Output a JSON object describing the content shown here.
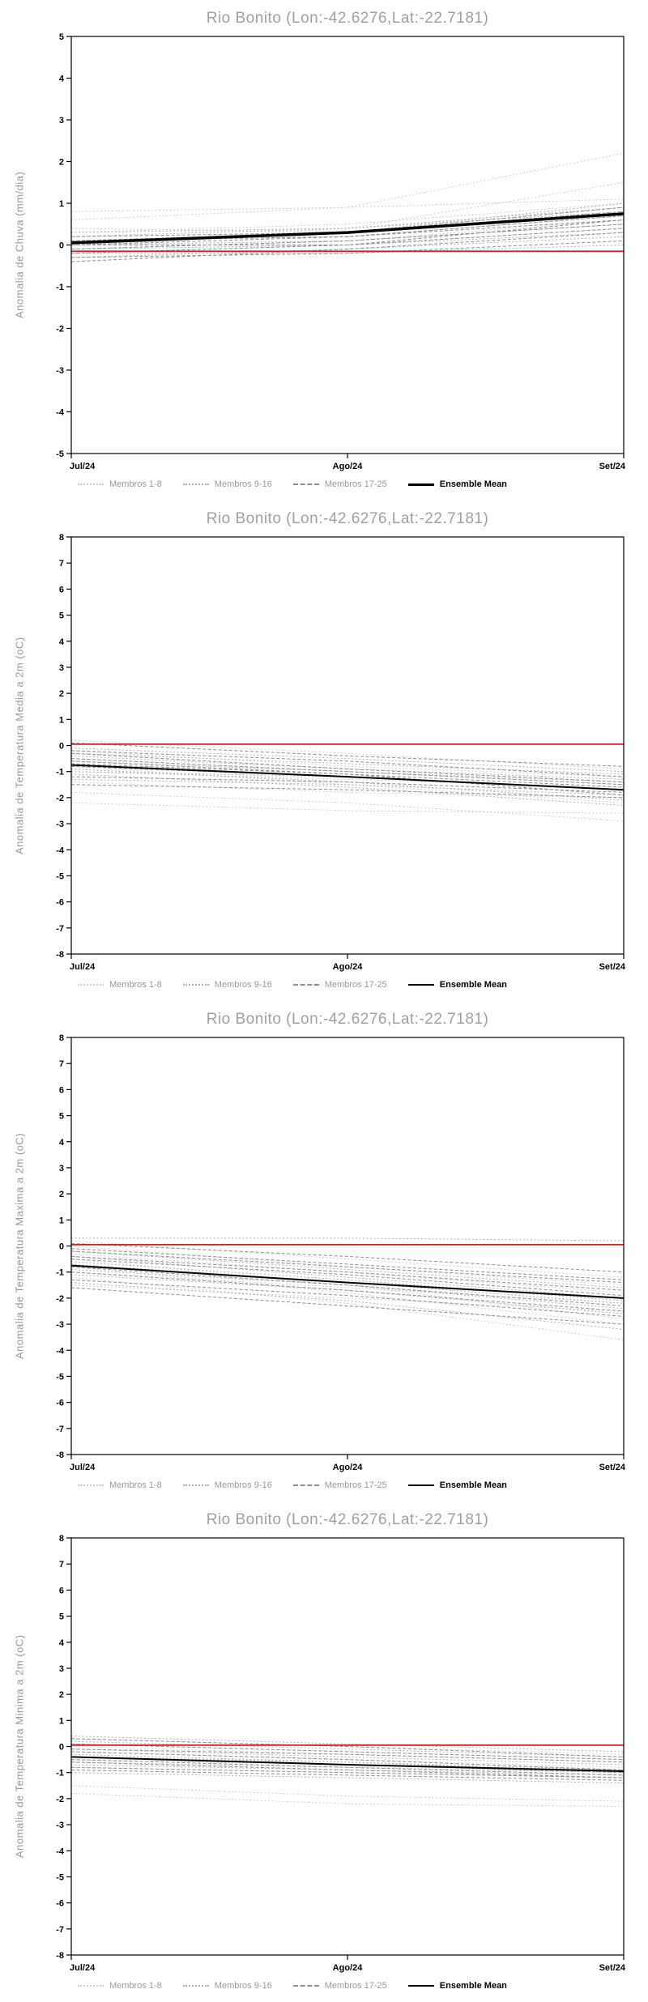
{
  "page": {
    "background": "#ffffff"
  },
  "chart_data": [
    {
      "type": "line",
      "title": "Rio Bonito (Lon:-42.6276,Lat:-22.7181)",
      "ylabel": "Anomalia de Chuva (mm/dia)",
      "x_labels": [
        "Jul/24",
        "Ago/24",
        "Set/24"
      ],
      "ylim": [
        -5,
        5
      ],
      "ytick_step": 1,
      "grid": false,
      "legend_position": "bottom",
      "red_line": -0.15,
      "red_color": "#cc2222",
      "mean": {
        "label": "Ensemble Mean",
        "color": "#000000",
        "width": 3.5,
        "values": [
          0.05,
          0.3,
          0.75
        ]
      },
      "groups": [
        {
          "label": "Membros 1-8",
          "color": "#cfcfcf",
          "dash": "2,2.5",
          "members": [
            [
              0.8,
              0.9,
              1.1
            ],
            [
              0.6,
              0.9,
              2.2
            ],
            [
              0.3,
              0.5,
              1.0
            ],
            [
              0.1,
              0.3,
              0.9
            ],
            [
              -0.1,
              0.1,
              0.6
            ],
            [
              -0.2,
              0.0,
              0.4
            ],
            [
              0.4,
              0.3,
              0.8
            ],
            [
              0.0,
              0.4,
              1.5
            ]
          ]
        },
        {
          "label": "Membros 9-16",
          "color": "#b0b0b0",
          "dash": "2,2.5",
          "members": [
            [
              0.2,
              0.4,
              0.9
            ],
            [
              0.0,
              0.1,
              0.5
            ],
            [
              -0.1,
              0.0,
              0.3
            ],
            [
              -0.3,
              -0.1,
              0.2
            ],
            [
              0.1,
              0.2,
              0.7
            ],
            [
              -0.2,
              -0.2,
              0.0
            ],
            [
              0.3,
              0.4,
              0.8
            ],
            [
              0.0,
              0.3,
              1.0
            ]
          ]
        },
        {
          "label": "Membros 17-25",
          "color": "#8f8f8f",
          "dash": "4,2.5",
          "members": [
            [
              0.1,
              0.3,
              0.8
            ],
            [
              -0.1,
              0.1,
              0.5
            ],
            [
              -0.3,
              -0.2,
              0.1
            ],
            [
              0.0,
              0.0,
              0.4
            ],
            [
              0.2,
              0.3,
              0.9
            ],
            [
              -0.2,
              0.0,
              0.6
            ],
            [
              0.0,
              0.2,
              0.7
            ],
            [
              -0.4,
              -0.1,
              0.3
            ],
            [
              0.1,
              0.2,
              0.6
            ]
          ]
        }
      ]
    },
    {
      "type": "line",
      "title": "Rio Bonito (Lon:-42.6276,Lat:-22.7181)",
      "ylabel": "Anomalia de Temperatura Media a 2m (oC)",
      "x_labels": [
        "Jul/24",
        "Ago/24",
        "Set/24"
      ],
      "ylim": [
        -8,
        8
      ],
      "ytick_step": 1,
      "grid": false,
      "legend_position": "bottom",
      "red_line": 0.05,
      "red_color": "#cc2222",
      "mean": {
        "label": "Ensemble Mean",
        "color": "#000000",
        "width": 2,
        "values": [
          -0.75,
          -1.2,
          -1.7
        ]
      },
      "groups": [
        {
          "label": "Membros 1-8",
          "color": "#cfcfcf",
          "dash": "2,2.5",
          "members": [
            [
              -2.2,
              -2.5,
              -2.6
            ],
            [
              -1.8,
              -2.2,
              -2.9
            ],
            [
              -0.5,
              -1.0,
              -1.5
            ],
            [
              -0.2,
              -0.8,
              -1.2
            ],
            [
              0.2,
              -0.3,
              -0.9
            ],
            [
              -1.0,
              -1.3,
              -1.6
            ],
            [
              -0.8,
              -1.5,
              -2.2
            ],
            [
              -1.4,
              -1.8,
              -2.0
            ]
          ]
        },
        {
          "label": "Membros 9-16",
          "color": "#b0b0b0",
          "dash": "2,2.5",
          "members": [
            [
              -0.3,
              -0.7,
              -1.1
            ],
            [
              -0.6,
              -1.0,
              -1.4
            ],
            [
              -1.0,
              -1.2,
              -1.7
            ],
            [
              -1.3,
              -1.5,
              -1.9
            ],
            [
              -0.1,
              -0.5,
              -1.0
            ],
            [
              -0.9,
              -1.4,
              -2.1
            ],
            [
              -0.4,
              -0.9,
              -1.3
            ],
            [
              -1.1,
              -1.6,
              -2.3
            ]
          ]
        },
        {
          "label": "Membros 17-25",
          "color": "#8f8f8f",
          "dash": "4,2.5",
          "members": [
            [
              -0.2,
              -0.6,
              -1.2
            ],
            [
              -0.7,
              -1.1,
              -1.6
            ],
            [
              -1.2,
              -1.4,
              -1.8
            ],
            [
              -0.5,
              -1.0,
              -1.5
            ],
            [
              0.1,
              -0.4,
              -0.8
            ],
            [
              -0.8,
              -1.2,
              -1.7
            ],
            [
              -1.5,
              -1.7,
              -2.0
            ],
            [
              -0.3,
              -0.9,
              -1.4
            ],
            [
              -0.6,
              -1.1,
              -1.9
            ]
          ]
        }
      ]
    },
    {
      "type": "line",
      "title": "Rio Bonito (Lon:-42.6276,Lat:-22.7181)",
      "ylabel": "Anomalia de Temperatura Maxima a 2m (oC)",
      "x_labels": [
        "Jul/24",
        "Ago/24",
        "Set/24"
      ],
      "ylim": [
        -8,
        8
      ],
      "ytick_step": 1,
      "grid": false,
      "legend_position": "bottom",
      "red_line": 0.05,
      "red_color": "#cc2222",
      "mean": {
        "label": "Ensemble Mean",
        "color": "#000000",
        "width": 2,
        "values": [
          -0.75,
          -1.4,
          -2.0
        ]
      },
      "groups": [
        {
          "label": "Membros 1-8",
          "color": "#cfcfcf",
          "dash": "2,2.5",
          "members": [
            [
              -0.5,
              -1.5,
              -2.8
            ],
            [
              -1.2,
              -2.2,
              -3.6
            ],
            [
              0.2,
              -0.5,
              -1.2
            ],
            [
              -0.8,
              -1.8,
              -3.0
            ],
            [
              -0.3,
              -1.0,
              -1.8
            ],
            [
              -1.5,
              -2.0,
              -2.5
            ],
            [
              0.0,
              -0.8,
              -1.5
            ],
            [
              -1.0,
              -1.6,
              -2.2
            ]
          ]
        },
        {
          "label": "Membros 9-16",
          "color": "#b0b0b0",
          "dash": "2,2.5",
          "members": [
            [
              -0.4,
              -1.2,
              -2.0
            ],
            [
              -0.9,
              -1.5,
              -2.4
            ],
            [
              0.3,
              0.3,
              0.2
            ],
            [
              -0.6,
              -1.3,
              -2.1
            ],
            [
              -1.1,
              -1.7,
              -2.6
            ],
            [
              -0.2,
              -0.9,
              -1.6
            ],
            [
              -1.4,
              -2.1,
              -3.2
            ],
            [
              -0.7,
              -1.4,
              -2.2
            ]
          ]
        },
        {
          "label": "Membros 17-25",
          "color": "#8f8f8f",
          "dash": "4,2.5",
          "members": [
            [
              -0.1,
              -0.7,
              -1.3
            ],
            [
              -0.5,
              -1.1,
              -1.9
            ],
            [
              -1.3,
              -1.9,
              -2.7
            ],
            [
              -0.8,
              -1.5,
              -2.3
            ],
            [
              0.1,
              -0.4,
              -1.0
            ],
            [
              -1.0,
              -1.7,
              -2.5
            ],
            [
              -0.4,
              -1.0,
              -1.7
            ],
            [
              -1.6,
              -2.3,
              -3.0
            ],
            [
              -0.2,
              -0.8,
              -1.4
            ]
          ]
        }
      ]
    },
    {
      "type": "line",
      "title": "Rio Bonito (Lon:-42.6276,Lat:-22.7181)",
      "ylabel": "Anomalia de Temperatura Minima a 2m (oC)",
      "x_labels": [
        "Jul/24",
        "Ago/24",
        "Set/24"
      ],
      "ylim": [
        -8,
        8
      ],
      "ytick_step": 1,
      "grid": false,
      "legend_position": "bottom",
      "red_line": 0.05,
      "red_color": "#cc2222",
      "mean": {
        "label": "Ensemble Mean",
        "color": "#000000",
        "width": 2,
        "values": [
          -0.4,
          -0.7,
          -0.95
        ]
      },
      "groups": [
        {
          "label": "Membros 1-8",
          "color": "#cfcfcf",
          "dash": "2,2.5",
          "members": [
            [
              -1.8,
              -2.2,
              -2.3
            ],
            [
              -1.5,
              -1.9,
              -2.1
            ],
            [
              0.3,
              0.0,
              -0.3
            ],
            [
              0.1,
              -0.2,
              -0.5
            ],
            [
              -0.2,
              -0.5,
              -0.8
            ],
            [
              -0.5,
              -0.7,
              -0.9
            ],
            [
              0.0,
              -0.3,
              -0.6
            ],
            [
              -0.8,
              -1.0,
              -1.2
            ]
          ]
        },
        {
          "label": "Membros 9-16",
          "color": "#b0b0b0",
          "dash": "2,2.5",
          "members": [
            [
              0.2,
              -0.1,
              -0.4
            ],
            [
              -0.1,
              -0.4,
              -0.7
            ],
            [
              -0.4,
              -0.6,
              -0.9
            ],
            [
              -0.7,
              -0.9,
              -1.1
            ],
            [
              0.4,
              0.1,
              -0.2
            ],
            [
              -0.3,
              -0.6,
              -1.0
            ],
            [
              -0.6,
              -0.8,
              -1.0
            ],
            [
              -1.0,
              -1.2,
              -1.4
            ]
          ]
        },
        {
          "label": "Membros 17-25",
          "color": "#8f8f8f",
          "dash": "4,2.5",
          "members": [
            [
              0.1,
              -0.2,
              -0.5
            ],
            [
              -0.2,
              -0.5,
              -0.9
            ],
            [
              -0.5,
              -0.8,
              -1.1
            ],
            [
              -0.9,
              -1.1,
              -1.3
            ],
            [
              0.3,
              0.0,
              -0.4
            ],
            [
              -0.4,
              -0.7,
              -1.0
            ],
            [
              -0.8,
              -1.0,
              -1.2
            ],
            [
              -0.1,
              -0.3,
              -0.6
            ],
            [
              -0.6,
              -0.9,
              -1.2
            ]
          ]
        }
      ]
    }
  ]
}
